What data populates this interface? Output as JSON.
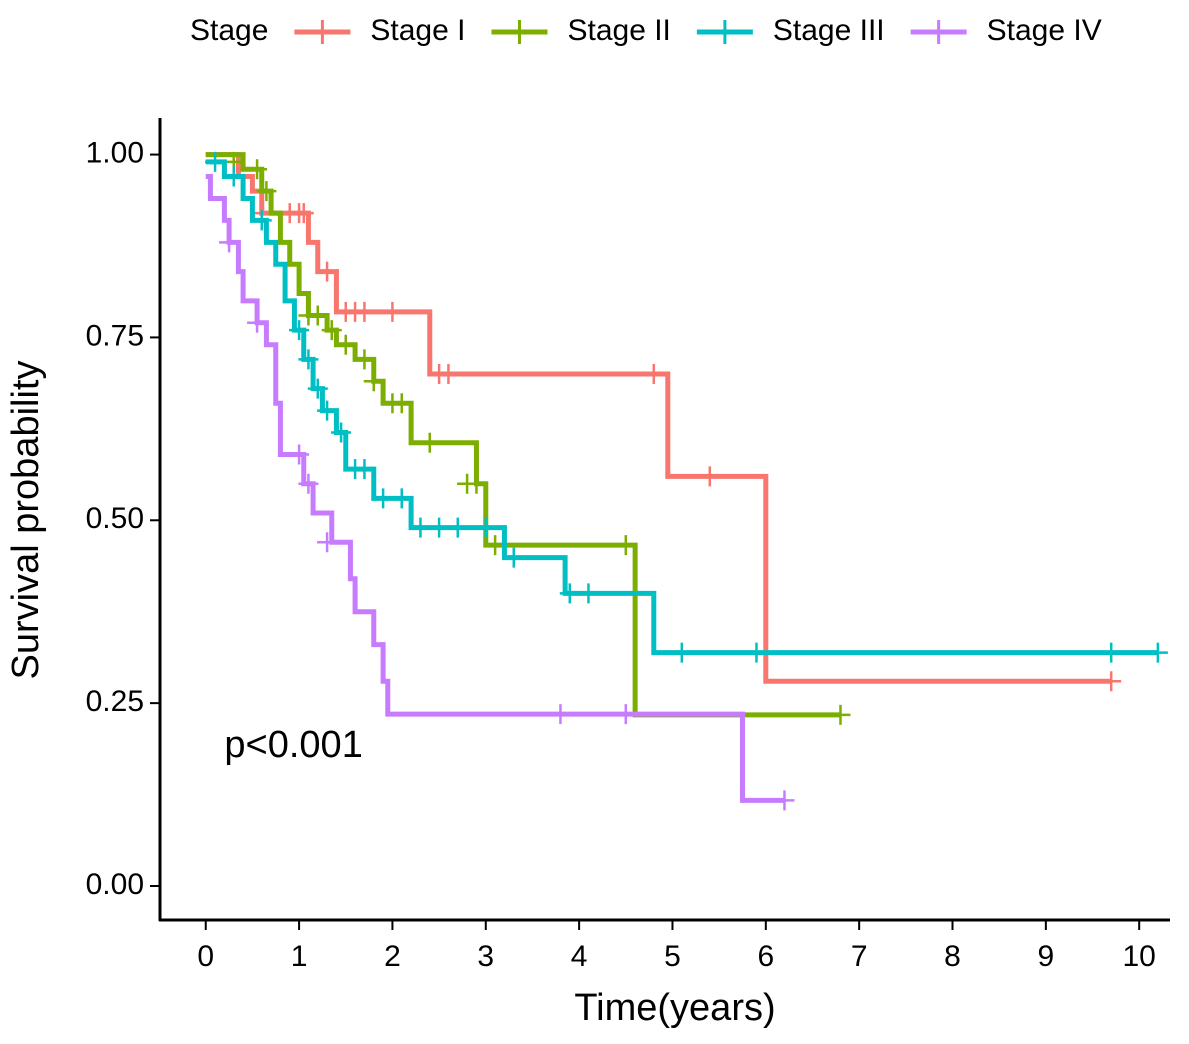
{
  "chart_data": {
    "type": "km",
    "legend_title": "Stage",
    "legend_position": "top",
    "x_label": "Time(years)",
    "y_label": "Survival probability",
    "annotation": {
      "text": "p<0.001",
      "x": 0.2,
      "y": 0.19
    },
    "xlim": [
      -0.49,
      10.33
    ],
    "ylim": [
      -0.0465,
      1.05
    ],
    "xticks": [
      0,
      1,
      2,
      3,
      4,
      5,
      6,
      7,
      8,
      9,
      10
    ],
    "yticks": [
      {
        "value": 0,
        "label": "0.00"
      },
      {
        "value": 0.25,
        "label": "0.25"
      },
      {
        "value": 0.5,
        "label": "0.50"
      },
      {
        "value": 0.75,
        "label": "0.75"
      },
      {
        "value": 1,
        "label": "1.00"
      }
    ],
    "series": [
      {
        "name": "Stage I",
        "color": "#F8766D",
        "x": [
          0,
          0.35,
          0.5,
          0.6,
          1.1,
          1.2,
          1.4,
          2.4,
          4.95,
          6.0,
          9.7
        ],
        "values": [
          1.0,
          0.97,
          0.95,
          0.92,
          0.88,
          0.84,
          0.785,
          0.7,
          0.56,
          0.28,
          0.28
        ],
        "censored": {
          "x": [
            0.6,
            0.9,
            1.0,
            1.05,
            1.3,
            1.5,
            1.6,
            1.7,
            2.0,
            2.5,
            2.6,
            4.8,
            5.4,
            9.7
          ],
          "values": [
            0.92,
            0.92,
            0.92,
            0.92,
            0.84,
            0.785,
            0.785,
            0.785,
            0.785,
            0.7,
            0.7,
            0.7,
            0.56,
            0.28
          ]
        }
      },
      {
        "name": "Stage II",
        "color": "#7CAE00",
        "x": [
          0,
          0.4,
          0.6,
          0.7,
          0.8,
          0.9,
          1.0,
          1.1,
          1.3,
          1.4,
          1.6,
          1.8,
          1.9,
          2.2,
          2.9,
          3.0,
          4.6,
          6.8
        ],
        "values": [
          1.0,
          0.98,
          0.95,
          0.92,
          0.88,
          0.85,
          0.81,
          0.78,
          0.76,
          0.74,
          0.72,
          0.69,
          0.66,
          0.606,
          0.55,
          0.466,
          0.234,
          0.234
        ],
        "censored": {
          "x": [
            0.3,
            0.55,
            0.65,
            1.1,
            1.2,
            1.35,
            1.5,
            1.7,
            1.8,
            2.0,
            2.1,
            2.4,
            2.8,
            2.9,
            3.1,
            4.5,
            6.8
          ],
          "values": [
            0.99,
            0.98,
            0.95,
            0.78,
            0.78,
            0.76,
            0.74,
            0.72,
            0.69,
            0.66,
            0.66,
            0.606,
            0.55,
            0.55,
            0.466,
            0.466,
            0.234
          ]
        }
      },
      {
        "name": "Stage III",
        "color": "#00BFC4",
        "x": [
          0,
          0.2,
          0.4,
          0.5,
          0.65,
          0.75,
          0.85,
          0.95,
          1.05,
          1.15,
          1.25,
          1.4,
          1.5,
          1.8,
          2.2,
          3.2,
          3.85,
          4.8,
          10.2
        ],
        "values": [
          0.99,
          0.97,
          0.94,
          0.91,
          0.88,
          0.85,
          0.8,
          0.76,
          0.72,
          0.68,
          0.65,
          0.62,
          0.57,
          0.53,
          0.49,
          0.449,
          0.4,
          0.319,
          0.319
        ],
        "censored": {
          "x": [
            0.1,
            0.3,
            0.6,
            1.0,
            1.1,
            1.2,
            1.3,
            1.45,
            1.6,
            1.7,
            1.9,
            2.1,
            2.3,
            2.5,
            2.7,
            3.0,
            3.3,
            3.9,
            4.1,
            5.1,
            5.9,
            9.7,
            10.2
          ],
          "values": [
            0.99,
            0.97,
            0.91,
            0.76,
            0.72,
            0.68,
            0.65,
            0.62,
            0.57,
            0.57,
            0.53,
            0.53,
            0.49,
            0.49,
            0.49,
            0.49,
            0.449,
            0.4,
            0.4,
            0.319,
            0.319,
            0.319,
            0.319
          ]
        }
      },
      {
        "name": "Stage IV",
        "color": "#C77CFF",
        "x": [
          0,
          0.05,
          0.2,
          0.25,
          0.35,
          0.4,
          0.55,
          0.65,
          0.75,
          0.8,
          1.05,
          1.15,
          1.35,
          1.55,
          1.6,
          1.8,
          1.9,
          1.95,
          5.75,
          6.2
        ],
        "values": [
          0.97,
          0.94,
          0.91,
          0.88,
          0.84,
          0.8,
          0.77,
          0.74,
          0.66,
          0.59,
          0.55,
          0.51,
          0.47,
          0.42,
          0.375,
          0.33,
          0.28,
          0.235,
          0.117,
          0.117
        ],
        "censored": {
          "x": [
            0.25,
            0.55,
            1.0,
            1.1,
            1.3,
            3.8,
            4.5,
            6.2
          ],
          "values": [
            0.88,
            0.77,
            0.59,
            0.55,
            0.47,
            0.235,
            0.235,
            0.117
          ]
        }
      }
    ]
  }
}
